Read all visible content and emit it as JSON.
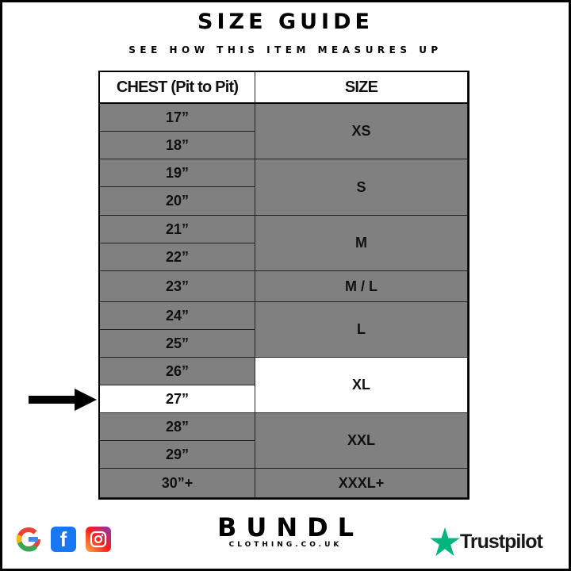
{
  "title": "SIZE GUIDE",
  "subtitle": "SEE HOW THIS ITEM MEASURES UP",
  "table": {
    "headers": [
      "CHEST (Pit to Pit)",
      "SIZE"
    ],
    "chest": [
      "17”",
      "18”",
      "19”",
      "20”",
      "21”",
      "22”",
      "23”",
      "24”",
      "25”",
      "26”",
      "27”",
      "28”",
      "29”",
      "30”+"
    ],
    "sizes": [
      {
        "label": "XS",
        "rows": 2
      },
      {
        "label": "S",
        "rows": 2
      },
      {
        "label": "M",
        "rows": 2
      },
      {
        "label": "M / L",
        "rows": 1
      },
      {
        "label": "L",
        "rows": 2
      },
      {
        "label": "XL",
        "rows": 2
      },
      {
        "label": "XXL",
        "rows": 2
      },
      {
        "label": "XXXL+",
        "rows": 1
      }
    ],
    "highlighted_chest": "27”",
    "highlighted_size": "XL"
  },
  "colors": {
    "cell": "#808080",
    "highlight": "#ffffff"
  },
  "footer": {
    "social_icons": [
      "google-icon",
      "facebook-icon",
      "instagram-icon"
    ],
    "brand": "BUNDL",
    "brand_sub": "CLOTHING.CO.UK",
    "trustpilot": "Trustpilot"
  }
}
